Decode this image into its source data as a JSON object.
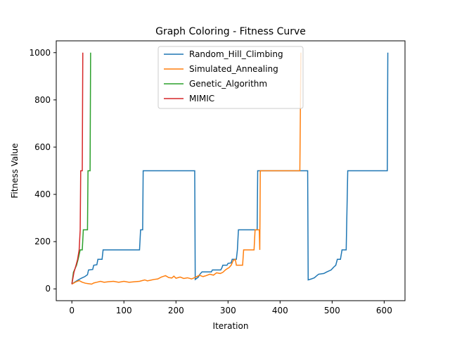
{
  "chart_data": {
    "type": "line",
    "title": "Graph Coloring - Fitness Curve",
    "xlabel": "Iteration",
    "ylabel": "Fitness Value",
    "xlim": [
      -30,
      640
    ],
    "ylim": [
      -50,
      1050
    ],
    "xticks": [
      0,
      100,
      200,
      300,
      400,
      500,
      600
    ],
    "yticks": [
      0,
      200,
      400,
      600,
      800,
      1000
    ],
    "grid": false,
    "legend_position": "top-center",
    "series": [
      {
        "name": "Random_Hill_Climbing",
        "color": "#1f77b4",
        "points": [
          [
            0,
            20
          ],
          [
            5,
            28
          ],
          [
            10,
            35
          ],
          [
            18,
            45
          ],
          [
            25,
            52
          ],
          [
            30,
            60
          ],
          [
            32,
            80
          ],
          [
            40,
            82
          ],
          [
            42,
            100
          ],
          [
            48,
            102
          ],
          [
            50,
            125
          ],
          [
            58,
            125
          ],
          [
            60,
            165
          ],
          [
            130,
            165
          ],
          [
            132,
            250
          ],
          [
            136,
            250
          ],
          [
            137,
            500
          ],
          [
            236,
            500
          ],
          [
            237,
            40
          ],
          [
            243,
            50
          ],
          [
            246,
            62
          ],
          [
            250,
            72
          ],
          [
            268,
            72
          ],
          [
            270,
            80
          ],
          [
            286,
            80
          ],
          [
            288,
            88
          ],
          [
            290,
            100
          ],
          [
            298,
            100
          ],
          [
            300,
            108
          ],
          [
            306,
            110
          ],
          [
            308,
            125
          ],
          [
            316,
            125
          ],
          [
            318,
            165
          ],
          [
            320,
            250
          ],
          [
            356,
            250
          ],
          [
            357,
            500
          ],
          [
            453,
            500
          ],
          [
            454,
            38
          ],
          [
            460,
            42
          ],
          [
            466,
            47
          ],
          [
            470,
            55
          ],
          [
            474,
            62
          ],
          [
            484,
            65
          ],
          [
            490,
            72
          ],
          [
            498,
            80
          ],
          [
            503,
            92
          ],
          [
            507,
            100
          ],
          [
            510,
            125
          ],
          [
            516,
            125
          ],
          [
            519,
            165
          ],
          [
            527,
            165
          ],
          [
            530,
            500
          ],
          [
            606,
            500
          ],
          [
            607,
            1000
          ]
        ]
      },
      {
        "name": "Simulated_Annealing",
        "color": "#ff7f0e",
        "points": [
          [
            0,
            20
          ],
          [
            4,
            25
          ],
          [
            8,
            30
          ],
          [
            14,
            35
          ],
          [
            20,
            28
          ],
          [
            26,
            24
          ],
          [
            32,
            22
          ],
          [
            38,
            20
          ],
          [
            42,
            25
          ],
          [
            48,
            28
          ],
          [
            55,
            32
          ],
          [
            62,
            28
          ],
          [
            70,
            30
          ],
          [
            80,
            32
          ],
          [
            90,
            28
          ],
          [
            100,
            32
          ],
          [
            110,
            28
          ],
          [
            120,
            30
          ],
          [
            130,
            32
          ],
          [
            140,
            38
          ],
          [
            145,
            34
          ],
          [
            150,
            36
          ],
          [
            158,
            40
          ],
          [
            165,
            42
          ],
          [
            172,
            50
          ],
          [
            180,
            56
          ],
          [
            186,
            48
          ],
          [
            192,
            46
          ],
          [
            196,
            54
          ],
          [
            200,
            45
          ],
          [
            208,
            50
          ],
          [
            215,
            44
          ],
          [
            222,
            47
          ],
          [
            230,
            42
          ],
          [
            236,
            48
          ],
          [
            240,
            52
          ],
          [
            245,
            58
          ],
          [
            252,
            52
          ],
          [
            258,
            56
          ],
          [
            265,
            62
          ],
          [
            272,
            58
          ],
          [
            278,
            68
          ],
          [
            285,
            65
          ],
          [
            290,
            70
          ],
          [
            296,
            82
          ],
          [
            302,
            90
          ],
          [
            306,
            100
          ],
          [
            310,
            120
          ],
          [
            314,
            125
          ],
          [
            316,
            100
          ],
          [
            328,
            100
          ],
          [
            330,
            165
          ],
          [
            350,
            165
          ],
          [
            352,
            250
          ],
          [
            360,
            250
          ],
          [
            361,
            165
          ],
          [
            362,
            500
          ],
          [
            438,
            500
          ],
          [
            440,
            1000
          ]
        ]
      },
      {
        "name": "Genetic_Algorithm",
        "color": "#2ca02c",
        "points": [
          [
            0,
            20
          ],
          [
            3,
            70
          ],
          [
            6,
            85
          ],
          [
            9,
            100
          ],
          [
            12,
            125
          ],
          [
            16,
            165
          ],
          [
            20,
            165
          ],
          [
            22,
            250
          ],
          [
            30,
            250
          ],
          [
            31,
            500
          ],
          [
            35,
            500
          ],
          [
            36,
            1000
          ]
        ]
      },
      {
        "name": "MIMIC",
        "color": "#d62728",
        "points": [
          [
            0,
            20
          ],
          [
            4,
            70
          ],
          [
            8,
            100
          ],
          [
            11,
            125
          ],
          [
            14,
            165
          ],
          [
            16,
            250
          ],
          [
            17,
            500
          ],
          [
            20,
            500
          ],
          [
            21,
            1000
          ]
        ]
      }
    ]
  }
}
